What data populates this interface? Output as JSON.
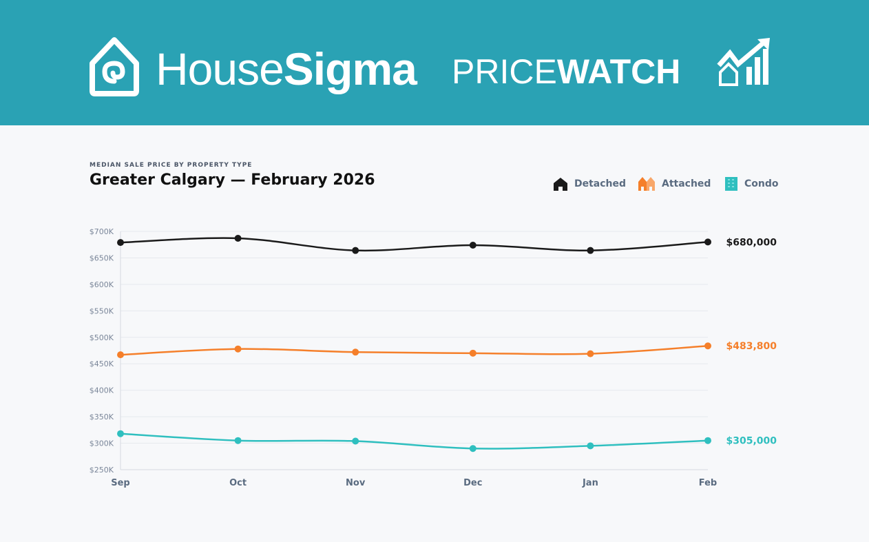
{
  "header": {
    "brand_light": "House",
    "brand_bold": "Sigma",
    "product_light": "PRICE",
    "product_bold": "WATCH",
    "color": "#2aa2b4"
  },
  "chart_data": {
    "type": "line",
    "subtitle": "MEDIAN SALE PRICE BY PROPERTY TYPE",
    "title": "Greater Calgary — February 2026",
    "categories": [
      "Sep",
      "Oct",
      "Nov",
      "Dec",
      "Jan",
      "Feb"
    ],
    "ylim": [
      250000,
      700000
    ],
    "yticks": [
      250000,
      300000,
      350000,
      400000,
      450000,
      500000,
      550000,
      600000,
      650000,
      700000
    ],
    "ytick_labels": [
      "$250K",
      "$300K",
      "$350K",
      "$400K",
      "$450K",
      "$500K",
      "$550K",
      "$600K",
      "$650K",
      "$700K"
    ],
    "grid": true,
    "legend_position": "top-right",
    "series": [
      {
        "name": "Detached",
        "color": "#1a1a1a",
        "icon": "house-icon",
        "values": [
          679000,
          687000,
          664000,
          674000,
          664000,
          680000
        ],
        "end_label": "$680,000"
      },
      {
        "name": "Attached",
        "color": "#f57f2a",
        "icon": "townhouse-icon",
        "values": [
          467000,
          478000,
          472000,
          470000,
          469000,
          483800
        ],
        "end_label": "$483,800"
      },
      {
        "name": "Condo",
        "color": "#2fbfbf",
        "icon": "building-icon",
        "values": [
          318000,
          305000,
          304000,
          290000,
          295000,
          305000
        ],
        "end_label": "$305,000"
      }
    ]
  }
}
